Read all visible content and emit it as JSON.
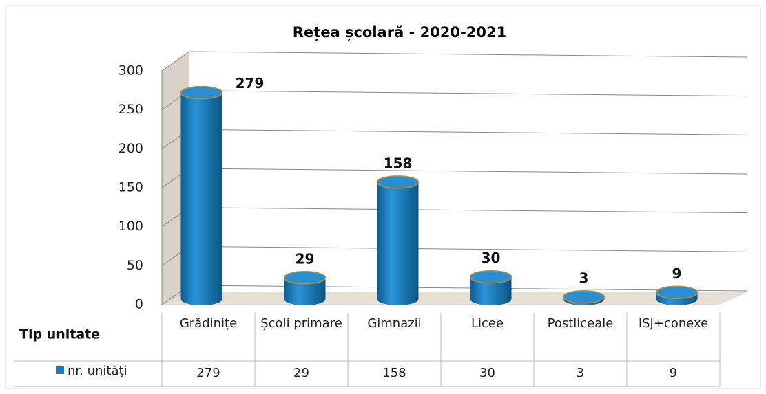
{
  "chart_data": {
    "type": "cylinder-bar",
    "title": "Rețea școlară - 2020-2021",
    "categories": [
      "Grădinițe",
      "Școli primare",
      "Gimnazii",
      "Licee",
      "Postliceale",
      "ISJ+conexe"
    ],
    "series": [
      {
        "name": "nr. unități",
        "color": "#1a7dbf",
        "values": [
          279,
          29,
          158,
          30,
          3,
          9
        ]
      }
    ],
    "table_header": "Tip unitate",
    "ylim": [
      0,
      300
    ],
    "yticks": [
      0,
      50,
      100,
      150,
      200,
      250,
      300
    ],
    "grid": true
  }
}
